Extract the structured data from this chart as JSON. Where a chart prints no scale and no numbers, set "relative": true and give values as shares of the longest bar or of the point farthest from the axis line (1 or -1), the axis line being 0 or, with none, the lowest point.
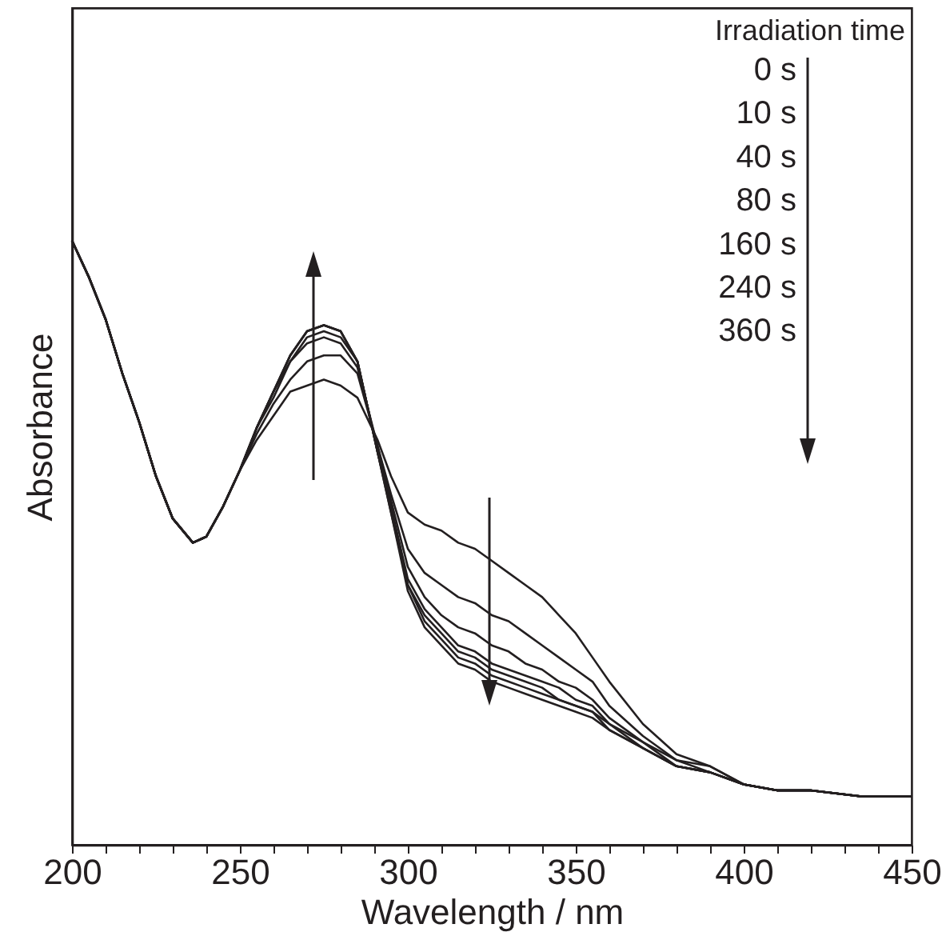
{
  "chart_data": {
    "type": "line",
    "relative": true,
    "xlabel": "Wavelength  / nm",
    "ylabel": "Absorbance",
    "annotations": [
      "Irradiation time",
      "0 s",
      "10 s",
      "40 s",
      "80 s",
      "160 s",
      "240 s",
      "360 s"
    ],
    "x": [
      200,
      205,
      210,
      215,
      220,
      225,
      230,
      236,
      240,
      245,
      250,
      255,
      260,
      265,
      270,
      275,
      280,
      285,
      291,
      295,
      300,
      305,
      310,
      315,
      320,
      325,
      330,
      335,
      340,
      345,
      350,
      355,
      360,
      370,
      380,
      390,
      400,
      410,
      420,
      435,
      450
    ],
    "xlim": [
      200,
      450
    ],
    "xticks": [
      200,
      {
        "value": 210,
        "label": null
      },
      {
        "value": 220,
        "label": null
      },
      {
        "value": 230,
        "label": null
      },
      {
        "value": 240,
        "label": null
      },
      250,
      {
        "value": 260,
        "label": null
      },
      {
        "value": 270,
        "label": null
      },
      {
        "value": 280,
        "label": null
      },
      {
        "value": 290,
        "label": null
      },
      300,
      {
        "value": 310,
        "label": null
      },
      {
        "value": 320,
        "label": null
      },
      {
        "value": 330,
        "label": null
      },
      {
        "value": 340,
        "label": null
      },
      350,
      {
        "value": 360,
        "label": null
      },
      {
        "value": 370,
        "label": null
      },
      {
        "value": 380,
        "label": null
      },
      {
        "value": 390,
        "label": null
      },
      400,
      {
        "value": 410,
        "label": null
      },
      {
        "value": 420,
        "label": null
      },
      {
        "value": 430,
        "label": null
      },
      {
        "value": 440,
        "label": null
      },
      450
    ],
    "tick_labels": "x",
    "series": [
      {
        "color": "#231f20",
        "values": [
          1.0,
          0.94,
          0.87,
          0.78,
          0.7,
          0.61,
          0.54,
          0.5,
          0.51,
          0.56,
          0.62,
          0.67,
          0.71,
          0.75,
          0.76,
          0.77,
          0.76,
          0.74,
          0.67,
          0.61,
          0.55,
          0.53,
          0.52,
          0.5,
          0.49,
          0.47,
          0.45,
          0.43,
          0.41,
          0.38,
          0.35,
          0.31,
          0.27,
          0.2,
          0.15,
          0.13,
          0.1,
          0.09,
          0.09,
          0.08,
          0.08
        ]
      },
      {
        "color": "#231f20",
        "values": [
          1.0,
          0.94,
          0.87,
          0.78,
          0.7,
          0.61,
          0.54,
          0.5,
          0.51,
          0.56,
          0.62,
          0.68,
          0.73,
          0.77,
          0.8,
          0.81,
          0.81,
          0.78,
          0.66,
          0.58,
          0.49,
          0.45,
          0.43,
          0.41,
          0.4,
          0.38,
          0.37,
          0.35,
          0.33,
          0.31,
          0.29,
          0.27,
          0.23,
          0.18,
          0.14,
          0.13,
          0.1,
          0.09,
          0.09,
          0.08,
          0.08
        ]
      },
      {
        "color": "#231f20",
        "values": [
          1.0,
          0.94,
          0.87,
          0.78,
          0.7,
          0.61,
          0.54,
          0.5,
          0.51,
          0.56,
          0.62,
          0.69,
          0.74,
          0.8,
          0.83,
          0.84,
          0.83,
          0.79,
          0.66,
          0.57,
          0.46,
          0.41,
          0.38,
          0.36,
          0.35,
          0.33,
          0.32,
          0.3,
          0.29,
          0.27,
          0.26,
          0.24,
          0.21,
          0.17,
          0.14,
          0.12,
          0.1,
          0.09,
          0.09,
          0.08,
          0.08
        ]
      },
      {
        "color": "#231f20",
        "values": [
          1.0,
          0.94,
          0.87,
          0.78,
          0.7,
          0.61,
          0.54,
          0.5,
          0.51,
          0.56,
          0.62,
          0.69,
          0.75,
          0.8,
          0.84,
          0.85,
          0.84,
          0.8,
          0.65,
          0.56,
          0.44,
          0.39,
          0.36,
          0.33,
          0.32,
          0.3,
          0.29,
          0.28,
          0.27,
          0.26,
          0.24,
          0.23,
          0.2,
          0.17,
          0.13,
          0.12,
          0.1,
          0.09,
          0.09,
          0.08,
          0.08
        ]
      },
      {
        "color": "#231f20",
        "values": [
          1.0,
          0.94,
          0.87,
          0.78,
          0.7,
          0.61,
          0.54,
          0.5,
          0.51,
          0.56,
          0.62,
          0.69,
          0.75,
          0.81,
          0.85,
          0.86,
          0.85,
          0.8,
          0.65,
          0.56,
          0.43,
          0.38,
          0.35,
          0.32,
          0.31,
          0.29,
          0.28,
          0.27,
          0.26,
          0.24,
          0.23,
          0.22,
          0.2,
          0.16,
          0.13,
          0.12,
          0.1,
          0.09,
          0.09,
          0.08,
          0.08
        ]
      },
      {
        "color": "#231f20",
        "values": [
          1.0,
          0.94,
          0.87,
          0.78,
          0.7,
          0.61,
          0.54,
          0.5,
          0.51,
          0.56,
          0.62,
          0.69,
          0.75,
          0.81,
          0.85,
          0.86,
          0.85,
          0.8,
          0.65,
          0.55,
          0.43,
          0.37,
          0.34,
          0.31,
          0.3,
          0.28,
          0.27,
          0.26,
          0.25,
          0.24,
          0.23,
          0.22,
          0.19,
          0.16,
          0.13,
          0.12,
          0.1,
          0.09,
          0.09,
          0.08,
          0.08
        ]
      },
      {
        "color": "#231f20",
        "values": [
          1.0,
          0.94,
          0.87,
          0.78,
          0.7,
          0.61,
          0.54,
          0.5,
          0.51,
          0.56,
          0.62,
          0.69,
          0.75,
          0.81,
          0.85,
          0.86,
          0.85,
          0.8,
          0.65,
          0.55,
          0.42,
          0.36,
          0.33,
          0.3,
          0.29,
          0.27,
          0.26,
          0.25,
          0.24,
          0.23,
          0.22,
          0.21,
          0.19,
          0.16,
          0.13,
          0.12,
          0.1,
          0.09,
          0.09,
          0.08,
          0.08
        ]
      }
    ]
  }
}
